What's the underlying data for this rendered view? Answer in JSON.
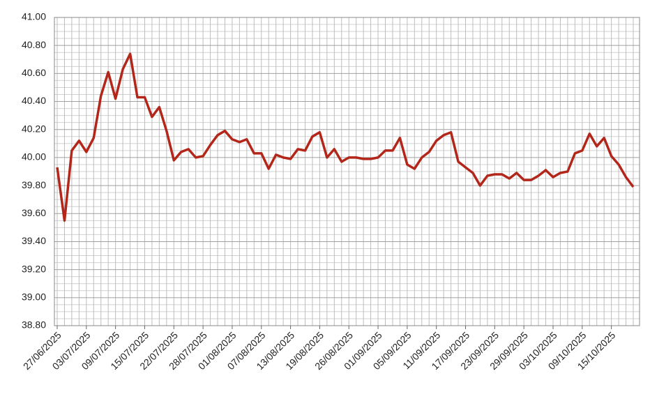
{
  "chart_data": {
    "type": "line",
    "categories": [
      "27/06/2025",
      null,
      null,
      null,
      "03/07/2025",
      null,
      null,
      null,
      "09/07/2025",
      null,
      null,
      null,
      "15/07/2025",
      null,
      null,
      null,
      "22/07/2025",
      null,
      null,
      null,
      "28/07/2025",
      null,
      null,
      null,
      "01/08/2025",
      null,
      null,
      null,
      "07/08/2025",
      null,
      null,
      null,
      "13/08/2025",
      null,
      null,
      null,
      "19/08/2025",
      null,
      null,
      null,
      "26/08/2025",
      null,
      null,
      null,
      "01/09/2025",
      null,
      null,
      null,
      "05/09/2025",
      null,
      null,
      null,
      "11/09/2025",
      null,
      null,
      null,
      "17/09/2025",
      null,
      null,
      null,
      "23/09/2025",
      null,
      null,
      null,
      "29/09/2025",
      null,
      null,
      null,
      "03/10/2025",
      null,
      null,
      null,
      "09/10/2025",
      null,
      null,
      null,
      "15/10/2025",
      null,
      null,
      null
    ],
    "series": [
      {
        "color": "#b3261a",
        "values": [
          39.93,
          39.55,
          40.05,
          40.12,
          40.04,
          40.14,
          40.44,
          40.61,
          40.42,
          40.63,
          40.74,
          40.43,
          40.43,
          40.29,
          40.36,
          40.19,
          39.98,
          40.04,
          40.06,
          40.0,
          40.01,
          40.09,
          40.16,
          40.19,
          40.13,
          40.11,
          40.13,
          40.03,
          40.03,
          39.92,
          40.02,
          40.0,
          39.99,
          40.06,
          40.05,
          40.15,
          40.18,
          40.0,
          40.06,
          39.97,
          40.0,
          40.0,
          39.99,
          39.99,
          40.0,
          40.05,
          40.05,
          40.14,
          39.95,
          39.92,
          40.0,
          40.04,
          40.12,
          40.16,
          40.18,
          39.97,
          39.93,
          39.89,
          39.8,
          39.87,
          39.88,
          39.88,
          39.85,
          39.89,
          39.84,
          39.84,
          39.87,
          39.91,
          39.86,
          39.89,
          39.9,
          40.03,
          40.05,
          40.17,
          40.08,
          40.14,
          40.01,
          39.95,
          39.86,
          39.79
        ]
      }
    ],
    "ylim": [
      38.8,
      41.0
    ],
    "yticks": [
      {
        "value": 38.8,
        "label": "38.80"
      },
      {
        "value": 39.0,
        "label": "39.00"
      },
      {
        "value": 39.2,
        "label": "39.20"
      },
      {
        "value": 39.4,
        "label": "39.40"
      },
      {
        "value": 39.6,
        "label": "39.60"
      },
      {
        "value": 39.8,
        "label": "39.80"
      },
      {
        "value": 40.0,
        "label": "40.00"
      },
      {
        "value": 40.2,
        "label": "40.20"
      },
      {
        "value": 40.4,
        "label": "40.40"
      },
      {
        "value": 40.6,
        "label": "40.60"
      },
      {
        "value": 40.8,
        "label": "40.80"
      },
      {
        "value": 41.0,
        "label": "41.00"
      }
    ],
    "grid": true
  }
}
